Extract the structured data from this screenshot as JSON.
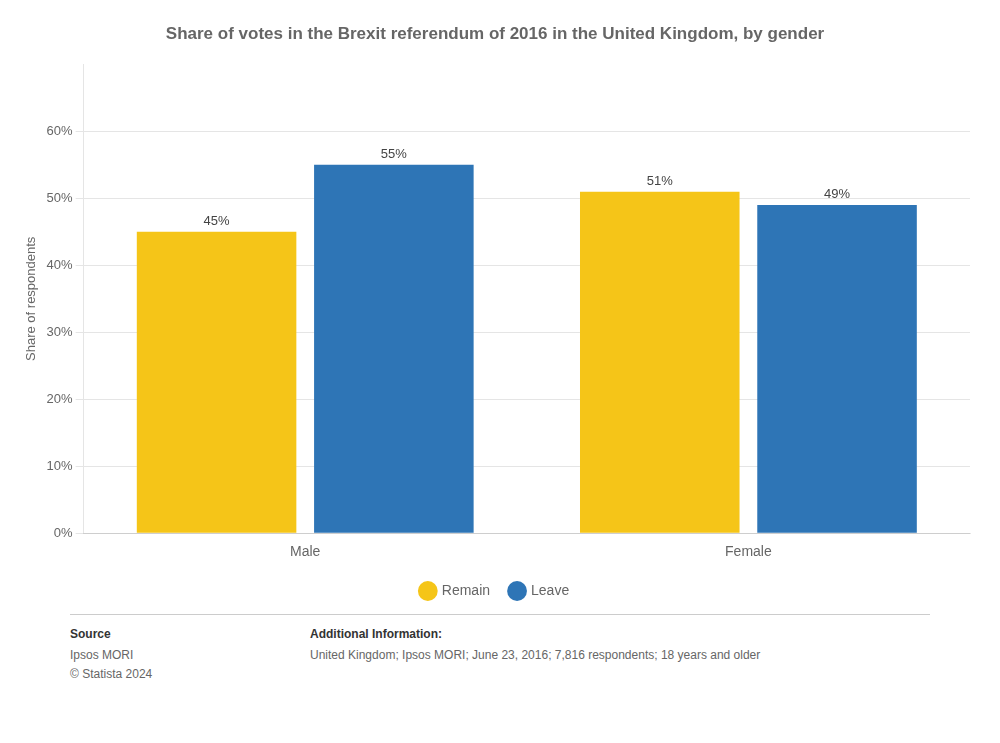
{
  "chart_data": {
    "type": "bar",
    "title": "Share of votes in the Brexit referendum of 2016 in the United Kingdom, by gender",
    "categories": [
      "Male",
      "Female"
    ],
    "series": [
      {
        "name": "Remain",
        "color": "#F5C518",
        "values": [
          45,
          51
        ],
        "value_labels": [
          "45%",
          "51%"
        ]
      },
      {
        "name": "Leave",
        "color": "#2E75B6",
        "values": [
          55,
          49
        ],
        "value_labels": [
          "55%",
          "49%"
        ]
      }
    ],
    "ylabel": "Share of respondents",
    "ylim": [
      0,
      70
    ],
    "yticks": [
      {
        "value": 0,
        "label": "0%"
      },
      {
        "value": 10,
        "label": "10%"
      },
      {
        "value": 20,
        "label": "20%"
      },
      {
        "value": 30,
        "label": "30%"
      },
      {
        "value": 40,
        "label": "40%"
      },
      {
        "value": 50,
        "label": "50%"
      },
      {
        "value": 60,
        "label": "60%"
      }
    ],
    "grid": true,
    "legend": "bottom",
    "data_labels": true,
    "annotations": [
      "Source",
      "Ipsos MORI\n© Statista 2024",
      "Additional Information:",
      "United Kingdom; Ipsos MORI; June 23, 2016; 7,816 respondents; 18 years and older"
    ]
  }
}
